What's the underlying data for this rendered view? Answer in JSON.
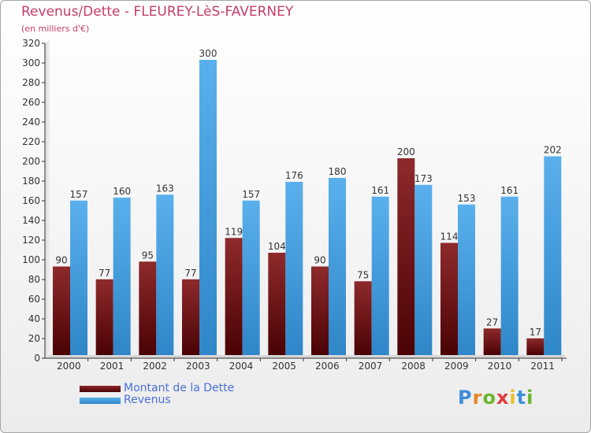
{
  "header": {
    "title": "Revenus/Dette - FLEUREY-LèS-FAVERNEY",
    "subtitle": "(en milliers d'€)"
  },
  "legend": {
    "dette_label": "Montant de la Dette",
    "revenus_label": "Revenus"
  },
  "logo": {
    "text": "Proxiti"
  },
  "colors": {
    "title": "#c43c6a",
    "dette": "#7a1416",
    "revenus": "#3f9fe0",
    "legend_text": "#4a6fd6"
  },
  "chart_data": {
    "type": "bar",
    "title": "Revenus/Dette - FLEUREY-LèS-FAVERNEY",
    "ylabel": "(en milliers d'€)",
    "xlabel": "",
    "ylim": [
      0,
      320
    ],
    "yticks": [
      0,
      20,
      40,
      60,
      80,
      100,
      120,
      140,
      160,
      180,
      200,
      220,
      240,
      260,
      280,
      300,
      320
    ],
    "grid": false,
    "legend_position": "bottom-left",
    "categories": [
      "2000",
      "2001",
      "2002",
      "2003",
      "2004",
      "2005",
      "2006",
      "2007",
      "2008",
      "2009",
      "2010",
      "2011"
    ],
    "series": [
      {
        "name": "Montant de la Dette",
        "values": [
          90,
          77,
          95,
          77,
          119,
          104,
          90,
          75,
          200,
          114,
          27,
          17
        ]
      },
      {
        "name": "Revenus",
        "values": [
          157,
          160,
          163,
          300,
          157,
          176,
          180,
          161,
          173,
          153,
          161,
          202
        ]
      }
    ]
  }
}
